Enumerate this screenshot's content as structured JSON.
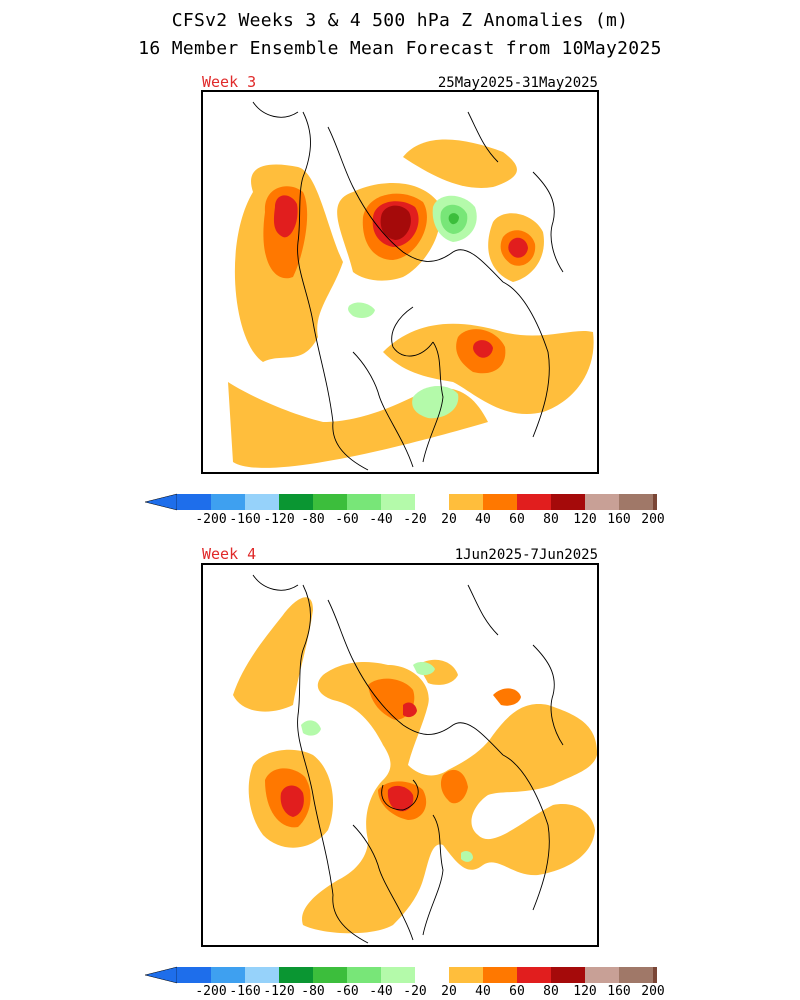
{
  "title": {
    "line1": "CFSv2 Weeks 3 & 4 500 hPa Z Anomalies (m)",
    "line2": "16 Member Ensemble Mean Forecast from 10May2025"
  },
  "panels": [
    {
      "week_label": "Week 3",
      "date_range": "25May2025-31May2025"
    },
    {
      "week_label": "Week 4",
      "date_range": "1Jun2025-7Jun2025"
    }
  ],
  "colorbar": {
    "colors": [
      "#1e6eeb",
      "#3ea0f0",
      "#96d2fa",
      "#0a9632",
      "#3cbe3c",
      "#78e678",
      "#b4faaa",
      "#ffffff",
      "#ffbe3c",
      "#ff7800",
      "#e11e1e",
      "#a50a0a",
      "#c8a096",
      "#a07868",
      "#7a4636"
    ],
    "left_arrow_color": "#1e6eeb",
    "right_arrow_color": "#7a4636",
    "tick_labels": [
      "-200",
      "-160",
      "-120",
      "-80",
      "-60",
      "-40",
      "-20",
      "20",
      "40",
      "60",
      "80",
      "120",
      "160",
      "200"
    ]
  },
  "legend_palette": {
    "pos20": "#ffbe3c",
    "pos40": "#ff7800",
    "pos60": "#e11e1e",
    "pos80": "#a50a0a",
    "neg20": "#b4faaa",
    "neg40": "#78e678",
    "neg60": "#3cbe3c"
  }
}
